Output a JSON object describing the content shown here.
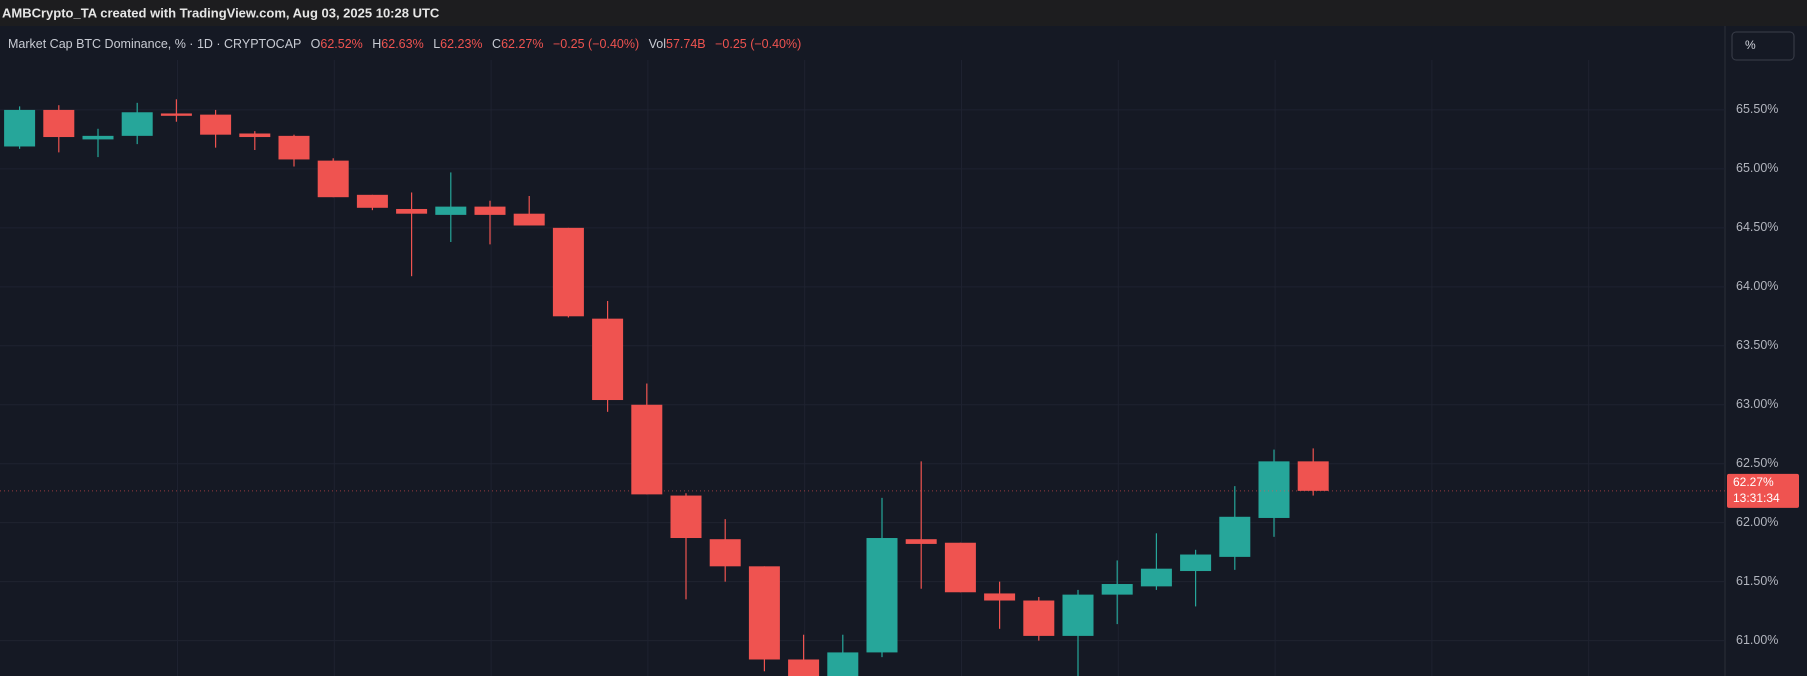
{
  "header": {
    "watermark": "AMBCrypto_TA created with TradingView.com, Aug 03, 2025 10:28 UTC"
  },
  "legend": {
    "symbol": "Market Cap BTC Dominance, % · 1D · CRYPTOCAP",
    "o_key": "O",
    "o": "62.52%",
    "h_key": "H",
    "h": "62.63%",
    "l_key": "L",
    "l": "62.23%",
    "c_key": "C",
    "c": "62.27%",
    "change": "−0.25 (−0.40%)",
    "vol_key": "Vol",
    "vol": "57.74B",
    "vol_change": "−0.25 (−0.40%)"
  },
  "toolbar": {
    "percent_button": "%"
  },
  "chart_data": {
    "type": "candlestick",
    "up_color": "#26a69a",
    "down_color": "#ef5350",
    "open": [
      65.19,
      65.5,
      65.25,
      65.28,
      65.47,
      65.46,
      65.3,
      65.28,
      65.07,
      64.78,
      64.66,
      64.61,
      64.68,
      64.62,
      64.5,
      63.73,
      63.0,
      62.23,
      61.86,
      61.63,
      60.84,
      60.68,
      60.9,
      61.86,
      61.83,
      61.4,
      61.34,
      61.04,
      61.39,
      61.46,
      61.59,
      61.71,
      62.04,
      62.52
    ],
    "high": [
      65.53,
      65.54,
      65.34,
      65.56,
      65.59,
      65.5,
      65.32,
      65.29,
      65.09,
      64.78,
      64.8,
      64.97,
      64.73,
      64.77,
      64.5,
      63.88,
      63.18,
      62.25,
      62.03,
      61.63,
      61.05,
      61.05,
      62.21,
      62.52,
      61.83,
      61.5,
      61.37,
      61.43,
      61.68,
      61.91,
      61.77,
      62.31,
      62.62,
      62.63
    ],
    "low": [
      65.17,
      65.14,
      65.1,
      65.21,
      65.4,
      65.18,
      65.16,
      65.02,
      64.76,
      64.65,
      64.09,
      64.38,
      64.36,
      64.52,
      63.74,
      62.94,
      62.24,
      61.35,
      61.5,
      60.74,
      60.6,
      60.6,
      60.86,
      61.44,
      61.41,
      61.1,
      61.0,
      60.7,
      61.14,
      61.43,
      61.29,
      61.6,
      61.88,
      62.23
    ],
    "close": [
      65.5,
      65.27,
      65.28,
      65.48,
      65.45,
      65.29,
      65.27,
      65.08,
      64.76,
      64.67,
      64.62,
      64.68,
      64.61,
      64.52,
      63.75,
      63.04,
      62.24,
      61.87,
      61.63,
      60.84,
      60.66,
      60.9,
      61.87,
      61.82,
      61.41,
      61.34,
      61.04,
      61.39,
      61.48,
      61.61,
      61.73,
      62.05,
      62.52,
      62.27
    ],
    "ylim": [
      60.7,
      66.22
    ],
    "yticks": [
      {
        "value": 61.0,
        "label": "61.00%"
      },
      {
        "value": 61.5,
        "label": "61.50%"
      },
      {
        "value": 62.0,
        "label": "62.00%"
      },
      {
        "value": 62.5,
        "label": "62.50%"
      },
      {
        "value": 63.0,
        "label": "63.00%"
      },
      {
        "value": 63.5,
        "label": "63.50%"
      },
      {
        "value": 64.0,
        "label": "64.00%"
      },
      {
        "value": 64.5,
        "label": "64.50%"
      },
      {
        "value": 65.0,
        "label": "65.00%"
      },
      {
        "value": 65.5,
        "label": "65.50%"
      }
    ],
    "grid": true,
    "price_label": {
      "value": 62.27,
      "label": "62.27%"
    },
    "countdown": "13:31:34"
  }
}
